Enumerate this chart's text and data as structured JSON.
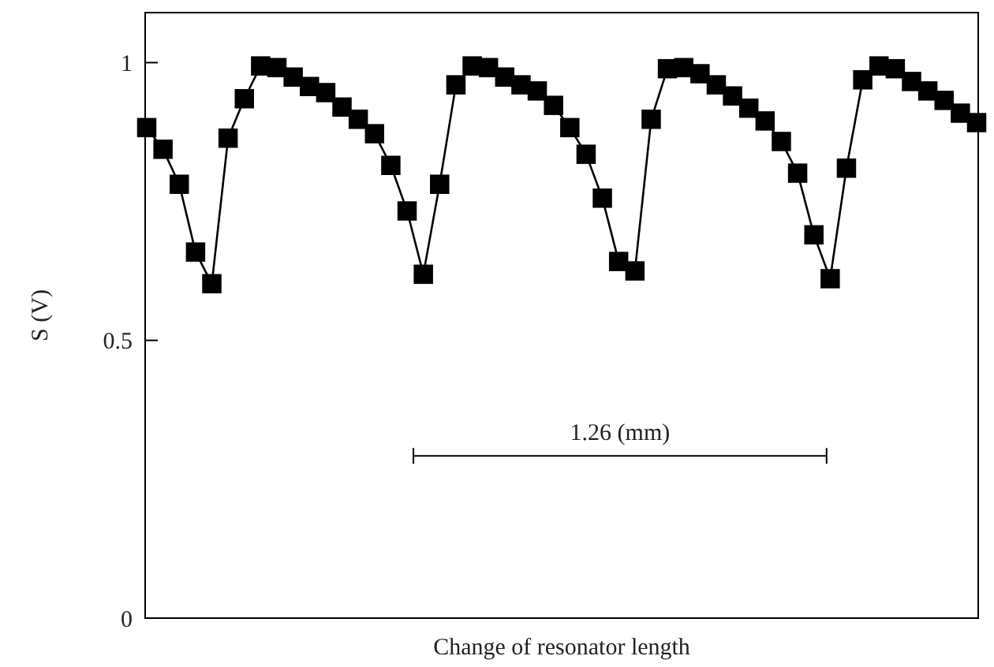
{
  "chart_data": {
    "type": "line",
    "xlabel": "Change of resonator length",
    "ylabel": "S (V)",
    "categories": [
      null,
      null,
      null,
      null,
      null,
      null,
      null,
      null,
      null,
      null,
      null,
      null,
      null,
      null,
      null,
      null,
      null,
      null,
      null,
      null,
      null,
      null,
      null,
      null,
      null,
      null,
      null,
      null,
      null,
      null,
      null,
      null,
      null,
      null,
      null,
      null,
      null,
      null,
      null,
      null,
      null,
      null,
      null,
      null,
      null,
      null,
      null,
      null,
      null,
      null,
      null,
      null
    ],
    "series": [
      {
        "color": "#000000",
        "values": [
          0.883,
          0.844,
          0.781,
          0.659,
          0.602,
          0.864,
          0.935,
          0.994,
          0.991,
          0.974,
          0.957,
          0.946,
          0.92,
          0.898,
          0.872,
          0.815,
          0.733,
          0.619,
          0.781,
          0.96,
          0.994,
          0.991,
          0.974,
          0.96,
          0.949,
          0.923,
          0.883,
          0.835,
          0.756,
          0.642,
          0.625,
          0.898,
          0.989,
          0.991,
          0.98,
          0.96,
          0.94,
          0.918,
          0.895,
          0.858,
          0.801,
          0.69,
          0.611,
          0.81,
          0.969,
          0.994,
          0.989,
          0.966,
          0.949,
          0.932,
          0.909,
          0.892
        ]
      }
    ],
    "ylim": [
      0,
      1.09
    ],
    "yticks": [
      0,
      0.5,
      1
    ],
    "tick_labels": "y",
    "marker": "square",
    "line_style": "solid",
    "annotations": [
      "1.26 (mm)"
    ]
  }
}
